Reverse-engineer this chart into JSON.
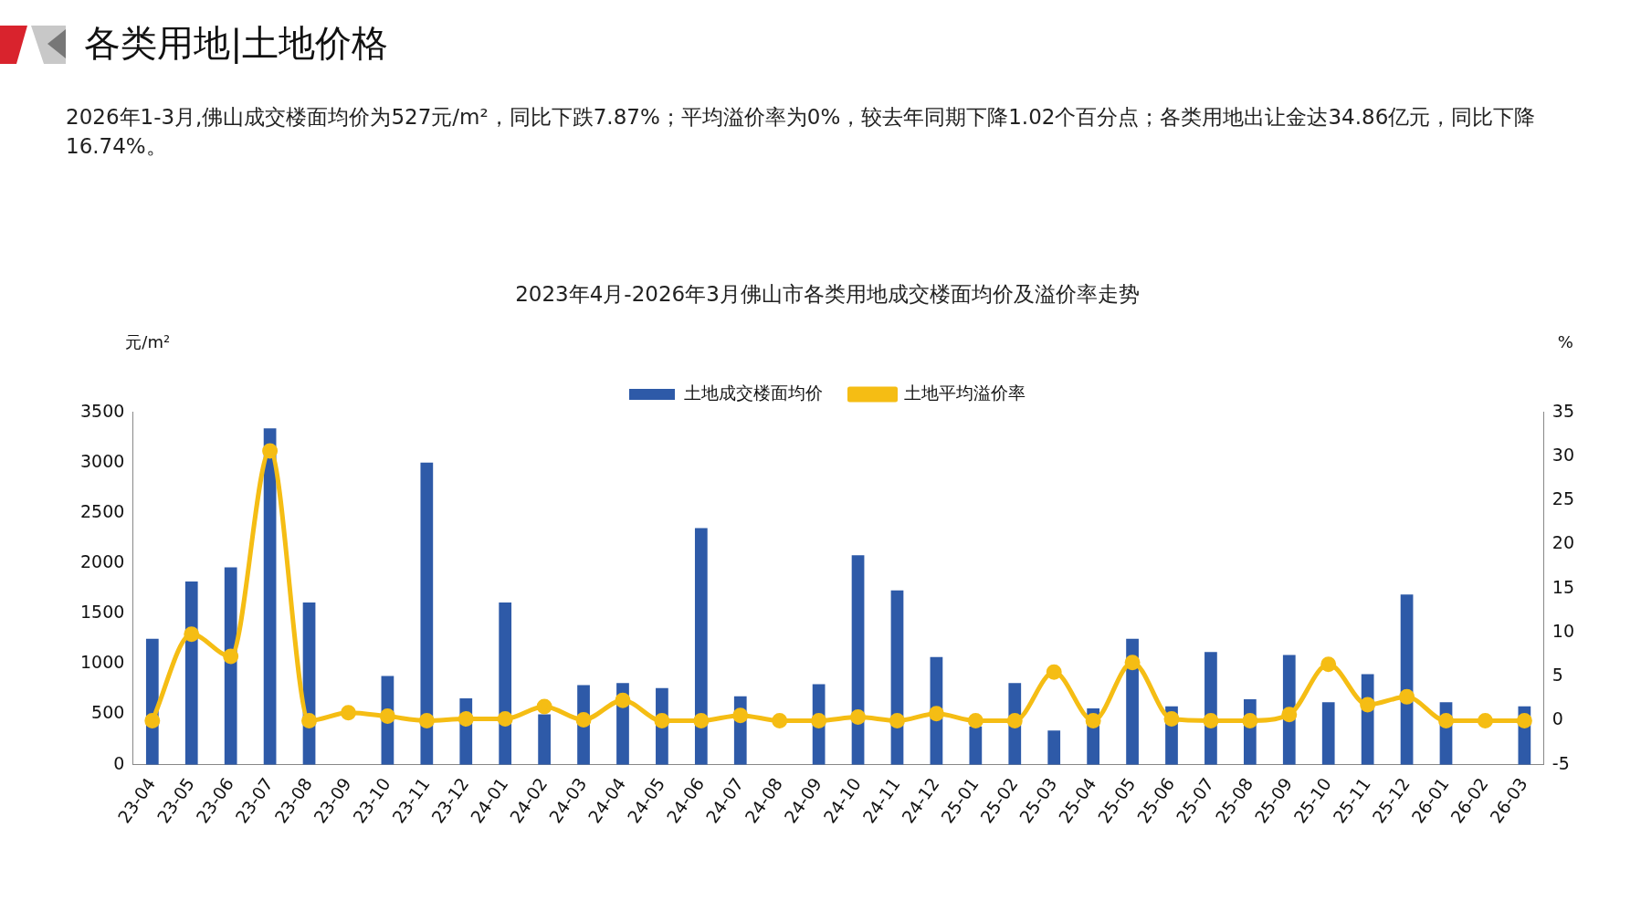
{
  "chart_data": {
    "type": "bar",
    "title": "2023年4月-2026年3月佛山市各类用地成交楼面均价及溢价率走势",
    "annotations": [
      "各类用地|土地价格",
      "2026年1-3月,佛山成交楼面均价为527元/m²，同比下跌7.87%；平均溢价率为0%，较去年同期下降1.02个百分点；各类用地出让金达34.86亿元，同比下降16.74%。"
    ],
    "ylabel": "元/m²",
    "y2label": "%",
    "categories": [
      "23-04",
      "23-05",
      "23-06",
      "23-07",
      "23-08",
      "23-09",
      "23-10",
      "23-11",
      "23-12",
      "24-01",
      "24-02",
      "24-03",
      "24-04",
      "24-05",
      "24-06",
      "24-07",
      "24-08",
      "24-09",
      "24-10",
      "24-11",
      "24-12",
      "25-01",
      "25-02",
      "25-03",
      "25-04",
      "25-05",
      "25-06",
      "25-07",
      "25-08",
      "25-09",
      "25-10",
      "25-11",
      "25-12",
      "26-01",
      "26-02",
      "26-03"
    ],
    "series": [
      {
        "name": "土地成交楼面均价",
        "color": "#2e5aa8",
        "values": [
          1250,
          1820,
          1960,
          3340,
          1610,
          null,
          880,
          3000,
          660,
          1610,
          500,
          790,
          810,
          760,
          2350,
          680,
          null,
          800,
          2080,
          1730,
          1070,
          380,
          810,
          340,
          560,
          1250,
          580,
          1120,
          650,
          1090,
          620,
          900,
          1690,
          620,
          null,
          580
        ]
      },
      {
        "name": "土地平均溢价率",
        "type": "line",
        "axis": "y2",
        "color": "#f5bd14",
        "values": [
          0,
          9.8,
          7.3,
          30.6,
          0,
          0.9,
          0.5,
          0,
          0.2,
          0.2,
          1.6,
          0.1,
          2.3,
          0,
          0,
          0.6,
          0,
          0,
          0.4,
          0,
          0.8,
          0,
          0,
          5.5,
          0,
          6.6,
          0.2,
          0,
          0,
          0.7,
          6.4,
          1.8,
          2.7,
          0,
          0,
          0
        ]
      }
    ],
    "ylim": [
      0,
      3500
    ],
    "yticks": [
      0,
      500,
      1000,
      1500,
      2000,
      2500,
      3000,
      3500
    ],
    "y2lim": [
      -5,
      35
    ],
    "y2ticks": [
      -5,
      0,
      5,
      10,
      15,
      20,
      25,
      30,
      35
    ],
    "legend": "top",
    "grid": false,
    "marker": "circle"
  }
}
